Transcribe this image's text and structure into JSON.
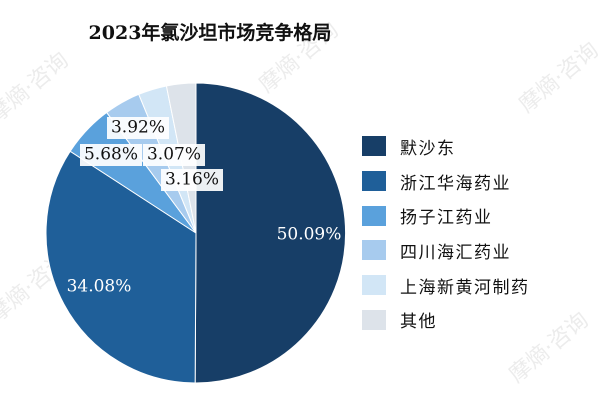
{
  "title": "2023年氯沙坦市场竞争格局",
  "watermark": "摩熵·咨询",
  "chart_data": {
    "type": "pie",
    "title": "2023年氯沙坦市场竞争格局",
    "start_angle_deg": 0,
    "direction": "clockwise",
    "legend_position": "right",
    "slices": [
      {
        "name": "默沙东",
        "value": 50.09,
        "label": "50.09%",
        "color": "#173e67"
      },
      {
        "name": "浙江华海药业",
        "value": 34.08,
        "label": "34.08%",
        "color": "#1f5f99"
      },
      {
        "name": "扬子江药业",
        "value": 5.68,
        "label": "5.68%",
        "color": "#5aa1dc"
      },
      {
        "name": "四川海汇药业",
        "value": 3.92,
        "label": "3.92%",
        "color": "#a7cbee"
      },
      {
        "name": "上海新黄河制药",
        "value": 3.07,
        "label": "3.07%",
        "color": "#d2e6f6"
      },
      {
        "name": "其他",
        "value": 3.16,
        "label": "3.16%",
        "color": "#dde3ea"
      }
    ]
  }
}
